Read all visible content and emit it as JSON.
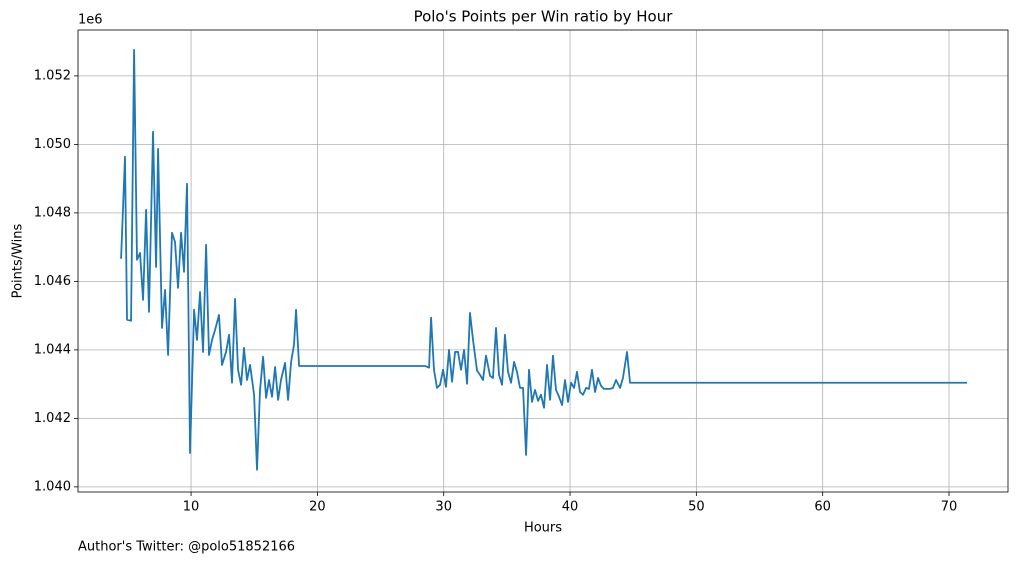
{
  "chart_data": {
    "type": "line",
    "title": "Polo's Points per Win ratio by Hour",
    "x_label": "Hours",
    "y_label": "Points/Wins",
    "y_offset_label": "1e6",
    "annotation": "Author's Twitter: @polo51852166",
    "grid": true,
    "xlim": [
      1.05,
      74.67
    ],
    "xticks": [
      10,
      20,
      30,
      40,
      50,
      60,
      70
    ],
    "ylim": [
      1.03985,
      1.05334
    ],
    "yticks": [
      {
        "value": 1.04,
        "label": "1.040"
      },
      {
        "value": 1.042,
        "label": "1.042"
      },
      {
        "value": 1.044,
        "label": "1.044"
      },
      {
        "value": 1.046,
        "label": "1.046"
      },
      {
        "value": 1.048,
        "label": "1.048"
      },
      {
        "value": 1.05,
        "label": "1.050"
      },
      {
        "value": 1.052,
        "label": "1.052"
      }
    ],
    "x": [
      4.46,
      4.77,
      4.93,
      5.25,
      5.49,
      5.72,
      5.96,
      6.2,
      6.44,
      6.67,
      6.99,
      7.23,
      7.39,
      7.7,
      7.94,
      8.18,
      8.49,
      8.73,
      8.97,
      9.21,
      9.44,
      9.68,
      9.92,
      10.24,
      10.47,
      10.71,
      10.95,
      11.19,
      11.42,
      11.66,
      11.9,
      12.21,
      12.45,
      12.77,
      13.01,
      13.24,
      13.48,
      13.72,
      13.96,
      14.19,
      14.43,
      14.67,
      14.99,
      15.22,
      15.46,
      15.7,
      15.94,
      16.17,
      16.41,
      16.65,
      16.89,
      17.12,
      17.44,
      17.68,
      17.92,
      18.15,
      18.31,
      18.55,
      28.52,
      28.84,
      29.0,
      29.23,
      29.47,
      29.71,
      29.95,
      30.18,
      30.42,
      30.66,
      30.9,
      31.13,
      31.37,
      31.61,
      31.85,
      32.08,
      32.32,
      32.64,
      32.88,
      33.11,
      33.35,
      33.67,
      33.9,
      34.14,
      34.38,
      34.62,
      34.85,
      35.09,
      35.33,
      35.57,
      35.8,
      36.04,
      36.28,
      36.52,
      36.75,
      36.99,
      37.23,
      37.47,
      37.7,
      37.94,
      38.18,
      38.42,
      38.65,
      38.89,
      39.13,
      39.37,
      39.6,
      39.84,
      40.08,
      40.32,
      40.55,
      40.79,
      41.03,
      41.27,
      41.5,
      41.74,
      41.98,
      42.22,
      42.45,
      42.69,
      42.93,
      43.17,
      43.4,
      43.64,
      43.96,
      44.19,
      44.51,
      44.75,
      71.43
    ],
    "series": [
      {
        "color": "#1f77b4",
        "values": [
          1.04666,
          1.04964,
          1.04488,
          1.04485,
          1.05276,
          1.04663,
          1.04683,
          1.04546,
          1.04809,
          1.04511,
          1.05037,
          1.04642,
          1.04987,
          1.04464,
          1.04575,
          1.04385,
          1.04742,
          1.04715,
          1.04581,
          1.04742,
          1.04628,
          1.04885,
          1.04099,
          1.04517,
          1.04429,
          1.04569,
          1.04394,
          1.04707,
          1.04385,
          1.04429,
          1.04458,
          1.04502,
          1.04356,
          1.04394,
          1.04444,
          1.04304,
          1.04549,
          1.04342,
          1.04298,
          1.04406,
          1.04312,
          1.04356,
          1.04269,
          1.0405,
          1.04283,
          1.0438,
          1.0426,
          1.04312,
          1.04263,
          1.0435,
          1.04254,
          1.04312,
          1.04362,
          1.04254,
          1.04365,
          1.04415,
          1.04517,
          1.04353,
          1.04353,
          1.04348,
          1.04494,
          1.04342,
          1.04289,
          1.04298,
          1.04342,
          1.04292,
          1.044,
          1.04307,
          1.04394,
          1.04394,
          1.04342,
          1.044,
          1.04301,
          1.04508,
          1.04429,
          1.04339,
          1.04327,
          1.04312,
          1.04383,
          1.04324,
          1.04318,
          1.04464,
          1.04327,
          1.04298,
          1.04444,
          1.04336,
          1.04304,
          1.04365,
          1.04336,
          1.04289,
          1.04289,
          1.04093,
          1.04342,
          1.04248,
          1.04283,
          1.04251,
          1.04269,
          1.04231,
          1.04356,
          1.04254,
          1.04383,
          1.04283,
          1.04263,
          1.04239,
          1.04312,
          1.04248,
          1.04304,
          1.04289,
          1.04336,
          1.04277,
          1.04269,
          1.04289,
          1.04286,
          1.04342,
          1.04277,
          1.04318,
          1.04295,
          1.04286,
          1.04286,
          1.04286,
          1.04289,
          1.04312,
          1.04289,
          1.04318,
          1.04394,
          1.04304,
          1.04304
        ]
      }
    ]
  }
}
